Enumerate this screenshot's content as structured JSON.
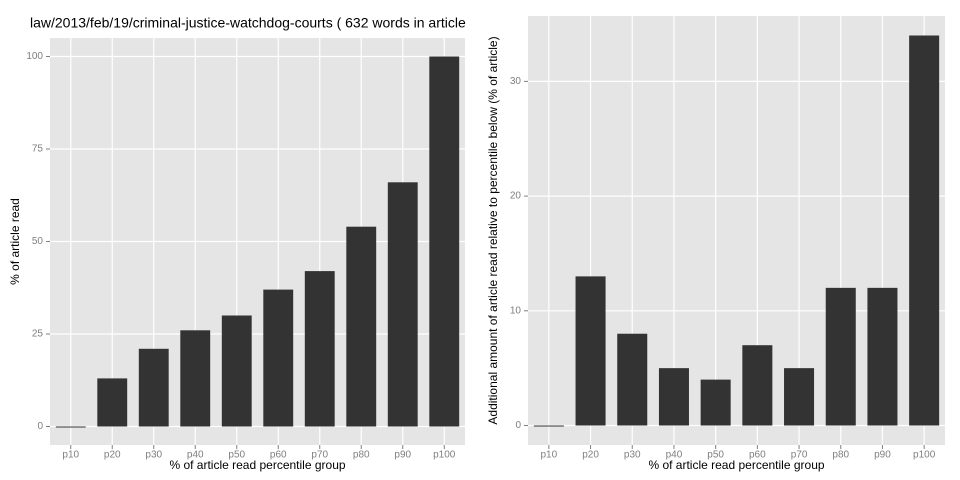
{
  "chart_data": [
    {
      "type": "bar",
      "title": "law/2013/feb/19/criminal-justice-watchdog-courts ( 632 words in article",
      "x_label": "% of article read percentile group",
      "y_label": "% of article read",
      "categories": [
        "p10",
        "p20",
        "p30",
        "p40",
        "p50",
        "p60",
        "p70",
        "p80",
        "p90",
        "p100"
      ],
      "values": [
        0,
        13,
        21,
        26,
        30,
        37,
        42,
        54,
        66,
        100
      ],
      "color": "#333333",
      "ylim": [
        -5,
        105
      ],
      "yticks": [
        0,
        25,
        50,
        75,
        100
      ],
      "grid": true
    },
    {
      "type": "bar",
      "x_label": "% of article read percentile group",
      "y_label": "Additional amount of article read relative to percentile below (% of article)",
      "categories": [
        "p10",
        "p20",
        "p30",
        "p40",
        "p50",
        "p60",
        "p70",
        "p80",
        "p90",
        "p100"
      ],
      "values": [
        0,
        13,
        8,
        5,
        4,
        7,
        5,
        12,
        12,
        34
      ],
      "color": "#333333",
      "ylim": [
        -1.7,
        35.7
      ],
      "yticks": [
        0,
        10,
        20,
        30
      ],
      "grid": true
    }
  ]
}
